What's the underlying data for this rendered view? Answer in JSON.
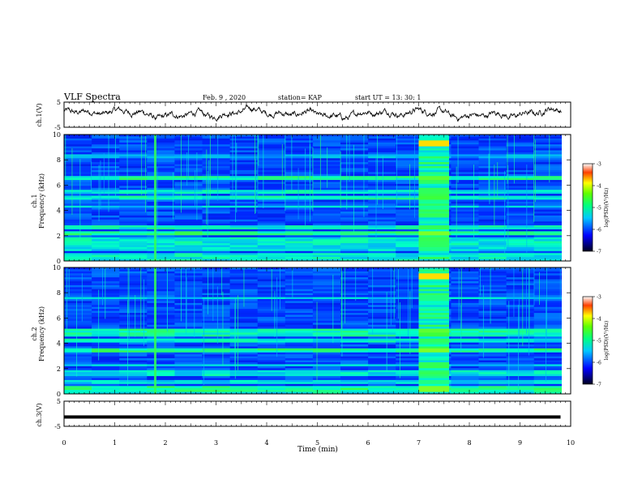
{
  "header": {
    "title": "VLF Spectra",
    "date": "Feb. 9 , 2020",
    "station": "station= KAP",
    "start": "start UT = 13: 30: 1"
  },
  "chart_data": [
    {
      "type": "line",
      "name": "ch1-waveform",
      "ylabel": "ch.1(V)",
      "ylim": [
        -5,
        5
      ],
      "yticks": [
        "5",
        "-5"
      ],
      "xlim": [
        0,
        10
      ],
      "description_series": "noisy waveform between about -2 and 3 V"
    },
    {
      "type": "heatmap",
      "name": "ch1-spectrogram",
      "ylabel_channel": "ch.1",
      "ylabel": "Frequency (kHz)",
      "ylim": [
        0,
        10
      ],
      "yticks": [
        "0",
        "2",
        "4",
        "6",
        "8",
        "10"
      ],
      "xlim": [
        0,
        10
      ],
      "colorbar": {
        "label": "log(PSD)(V²/Hz)",
        "range": [
          -7,
          -3
        ],
        "ticks": [
          "-3",
          "-4",
          "-5",
          "-6",
          "-7"
        ]
      },
      "broadband_burst_min": [
        7.0,
        7.6
      ],
      "impulse_min": 1.8
    },
    {
      "type": "heatmap",
      "name": "ch2-spectrogram",
      "ylabel_channel": "ch.2",
      "ylabel": "Frequency (kHz)",
      "ylim": [
        0,
        10
      ],
      "yticks": [
        "0",
        "2",
        "4",
        "6",
        "8",
        "10"
      ],
      "xlim": [
        0,
        10
      ],
      "colorbar": {
        "label": "log(PSD)(V²/Hz)",
        "range": [
          -7,
          -3
        ],
        "ticks": [
          "-3",
          "-4",
          "-5",
          "-6",
          "-7"
        ]
      },
      "broadband_burst_min": [
        7.0,
        7.6
      ],
      "impulse_min": 1.8
    },
    {
      "type": "line",
      "name": "ch3-trace",
      "ylabel": "ch.3(V)",
      "ylim": [
        -5,
        5
      ],
      "yticks": [
        "5",
        "-5"
      ],
      "xlim": [
        0,
        10
      ],
      "x": [
        0,
        9.8
      ],
      "values": [
        -1.3,
        -1.3
      ]
    }
  ],
  "xaxis": {
    "label": "Time (min)",
    "ticks": [
      "0",
      "1",
      "2",
      "3",
      "4",
      "5",
      "6",
      "7",
      "8",
      "9",
      "10"
    ]
  },
  "colormap": [
    "#00005a",
    "#0000c8",
    "#0060ff",
    "#00c8ff",
    "#00ffb0",
    "#40ff40",
    "#ffff00",
    "#ff8000",
    "#ff0000",
    "#8b0000"
  ]
}
